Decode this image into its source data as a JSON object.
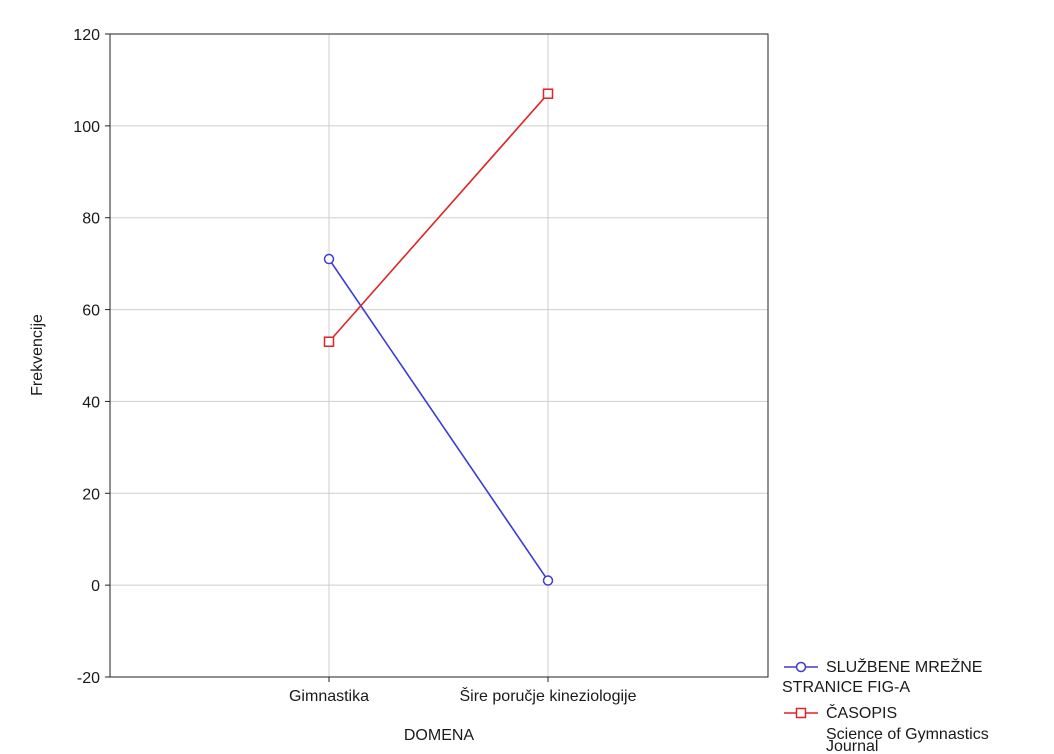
{
  "chart_data": {
    "type": "line",
    "categories": [
      "Gimnastika",
      "Šire poručje kineziologije"
    ],
    "xlabel": "DOMENA",
    "ylabel": "Frekvencije",
    "ylim": [
      -20,
      120
    ],
    "yticks": [
      -20,
      0,
      20,
      40,
      60,
      80,
      100,
      120
    ],
    "grid": true,
    "legend_position": "bottom-right outside",
    "series": [
      {
        "name_lines": [
          "SLUŽBENE MREŽNE",
          "STRANICE FIG-A"
        ],
        "values": [
          71,
          1
        ],
        "color": "#3b3bd6",
        "marker": "circle"
      },
      {
        "name_lines": [
          "ČASOPIS",
          "Science of Gymnastics",
          "Journal"
        ],
        "values": [
          53,
          107
        ],
        "color": "#e02424",
        "marker": "square"
      }
    ]
  }
}
